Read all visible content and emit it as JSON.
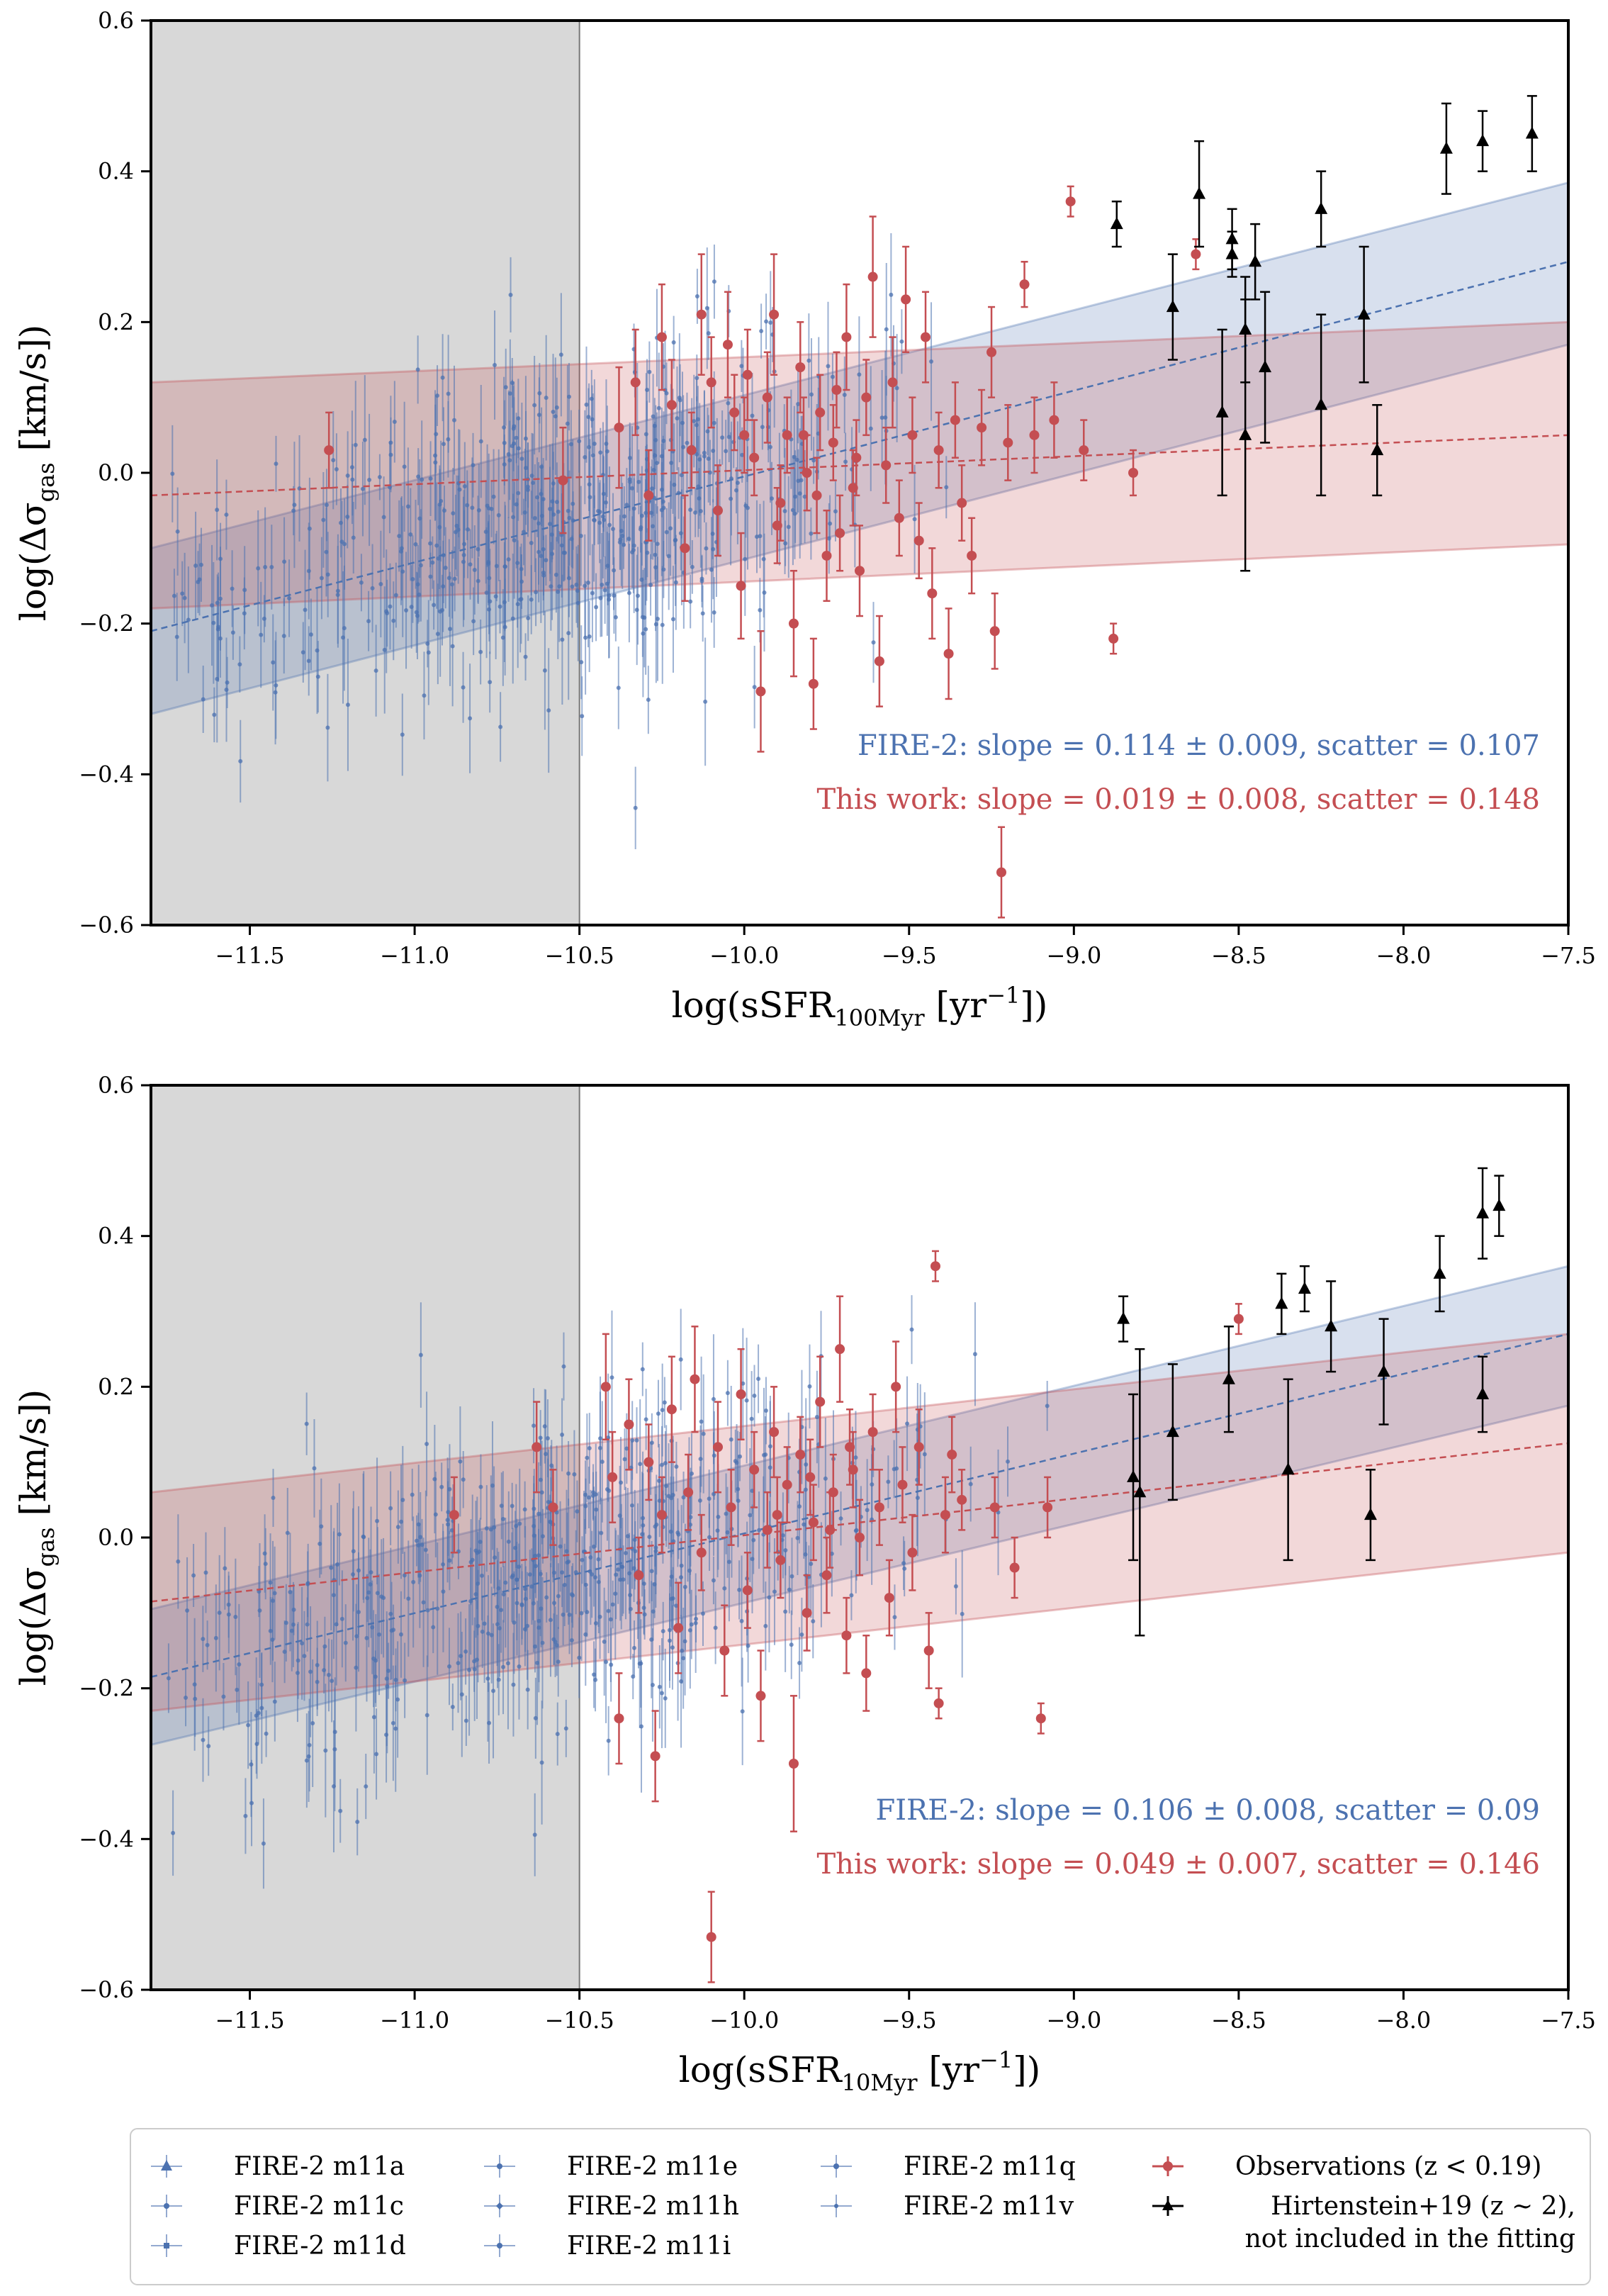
{
  "colors": {
    "fire": "#4c72b0",
    "obs": "#c44e52",
    "hirt": "#000000",
    "masked": "#d8d8d8"
  },
  "chart_data": [
    {
      "type": "scatter",
      "xlabel": "log(sSFR",
      "xlabel_sub": "100Myr",
      "xlabel_unit": " [yr",
      "xlabel_sup": "−1",
      "xlabel_end": "])",
      "ylabel": "log(Δσ",
      "ylabel_sub": "gas",
      "ylabel_end": " [km/s])",
      "xlim": [
        -11.8,
        -7.5
      ],
      "ylim": [
        -0.6,
        0.6
      ],
      "xticks": [
        -11.5,
        -11.0,
        -10.5,
        -10.0,
        -9.5,
        -9.0,
        -8.5,
        -8.0,
        -7.5
      ],
      "xtick_labels": [
        "−11.5",
        "−11.0",
        "−10.5",
        "−10.0",
        "−9.5",
        "−9.0",
        "−8.5",
        "−8.0",
        "−7.5"
      ],
      "yticks": [
        -0.6,
        -0.4,
        -0.2,
        0.0,
        0.2,
        0.4,
        0.6
      ],
      "ytick_labels": [
        "−0.6",
        "−0.4",
        "−0.2",
        "0.0",
        "0.2",
        "0.4",
        "0.6"
      ],
      "masked_region": [
        -11.8,
        -10.5
      ],
      "fits": [
        {
          "series": "FIRE-2",
          "x": [
            -11.8,
            -7.5
          ],
          "y": [
            -0.21,
            0.28
          ],
          "band_lower": [
            -0.32,
            0.17
          ],
          "band_upper": [
            -0.1,
            0.385
          ]
        },
        {
          "series": "This work",
          "x": [
            -11.8,
            -7.5
          ],
          "y": [
            -0.03,
            0.05
          ],
          "band_lower": [
            -0.18,
            -0.095
          ],
          "band_upper": [
            0.12,
            0.2
          ]
        }
      ],
      "annotations": [
        {
          "text": "FIRE-2: slope = 0.114 ± 0.009, scatter = 0.107",
          "color": "fire"
        },
        {
          "text": "This work: slope = 0.019 ± 0.008, scatter = 0.148",
          "color": "obs"
        }
      ],
      "observations": [
        {
          "x": -11.26,
          "y": 0.03,
          "err": 0.05
        },
        {
          "x": -10.55,
          "y": -0.01,
          "err": 0.07
        },
        {
          "x": -10.38,
          "y": 0.06,
          "err": 0.08
        },
        {
          "x": -10.33,
          "y": 0.12,
          "err": 0.07
        },
        {
          "x": -10.29,
          "y": -0.03,
          "err": 0.06
        },
        {
          "x": -10.25,
          "y": 0.18,
          "err": 0.07
        },
        {
          "x": -10.22,
          "y": 0.09,
          "err": 0.06
        },
        {
          "x": -10.18,
          "y": -0.1,
          "err": 0.07
        },
        {
          "x": -10.16,
          "y": 0.03,
          "err": 0.05
        },
        {
          "x": -10.13,
          "y": 0.21,
          "err": 0.08
        },
        {
          "x": -10.1,
          "y": 0.12,
          "err": 0.06
        },
        {
          "x": -10.08,
          "y": -0.05,
          "err": 0.06
        },
        {
          "x": -10.05,
          "y": 0.17,
          "err": 0.07
        },
        {
          "x": -10.03,
          "y": 0.08,
          "err": 0.05
        },
        {
          "x": -10.01,
          "y": -0.15,
          "err": 0.07
        },
        {
          "x": -9.99,
          "y": 0.13,
          "err": 0.06
        },
        {
          "x": -9.97,
          "y": 0.02,
          "err": 0.05
        },
        {
          "x": -9.95,
          "y": -0.29,
          "err": 0.08
        },
        {
          "x": -9.93,
          "y": 0.1,
          "err": 0.06
        },
        {
          "x": -9.91,
          "y": 0.21,
          "err": 0.08
        },
        {
          "x": -9.89,
          "y": -0.04,
          "err": 0.05
        },
        {
          "x": -9.87,
          "y": 0.05,
          "err": 0.05
        },
        {
          "x": -9.85,
          "y": -0.2,
          "err": 0.07
        },
        {
          "x": -9.83,
          "y": 0.14,
          "err": 0.06
        },
        {
          "x": -9.81,
          "y": 0.0,
          "err": 0.05
        },
        {
          "x": -9.79,
          "y": -0.28,
          "err": 0.06
        },
        {
          "x": -9.77,
          "y": 0.08,
          "err": 0.05
        },
        {
          "x": -9.75,
          "y": -0.11,
          "err": 0.06
        },
        {
          "x": -9.73,
          "y": 0.04,
          "err": 0.05
        },
        {
          "x": -9.71,
          "y": -0.08,
          "err": 0.05
        },
        {
          "x": -9.69,
          "y": 0.18,
          "err": 0.07
        },
        {
          "x": -9.67,
          "y": -0.02,
          "err": 0.05
        },
        {
          "x": -9.65,
          "y": -0.13,
          "err": 0.06
        },
        {
          "x": -9.63,
          "y": 0.1,
          "err": 0.05
        },
        {
          "x": -9.61,
          "y": 0.26,
          "err": 0.08
        },
        {
          "x": -9.59,
          "y": -0.25,
          "err": 0.06
        },
        {
          "x": -9.57,
          "y": 0.01,
          "err": 0.05
        },
        {
          "x": -9.55,
          "y": 0.12,
          "err": 0.06
        },
        {
          "x": -9.53,
          "y": -0.06,
          "err": 0.05
        },
        {
          "x": -9.51,
          "y": 0.23,
          "err": 0.07
        },
        {
          "x": -9.49,
          "y": 0.05,
          "err": 0.05
        },
        {
          "x": -9.47,
          "y": -0.09,
          "err": 0.05
        },
        {
          "x": -9.45,
          "y": 0.18,
          "err": 0.06
        },
        {
          "x": -9.43,
          "y": -0.16,
          "err": 0.06
        },
        {
          "x": -9.41,
          "y": 0.03,
          "err": 0.05
        },
        {
          "x": -9.38,
          "y": -0.24,
          "err": 0.06
        },
        {
          "x": -9.36,
          "y": 0.07,
          "err": 0.05
        },
        {
          "x": -9.34,
          "y": -0.04,
          "err": 0.05
        },
        {
          "x": -9.31,
          "y": -0.11,
          "err": 0.05
        },
        {
          "x": -9.28,
          "y": 0.06,
          "err": 0.05
        },
        {
          "x": -9.25,
          "y": 0.16,
          "err": 0.06
        },
        {
          "x": -9.24,
          "y": -0.21,
          "err": 0.05
        },
        {
          "x": -9.22,
          "y": -0.53,
          "err": 0.06
        },
        {
          "x": -9.2,
          "y": 0.04,
          "err": 0.05
        },
        {
          "x": -9.15,
          "y": 0.25,
          "err": 0.03
        },
        {
          "x": -9.12,
          "y": 0.05,
          "err": 0.05
        },
        {
          "x": -9.06,
          "y": 0.07,
          "err": 0.05
        },
        {
          "x": -9.01,
          "y": 0.36,
          "err": 0.02
        },
        {
          "x": -8.97,
          "y": 0.03,
          "err": 0.04
        },
        {
          "x": -8.88,
          "y": -0.22,
          "err": 0.02
        },
        {
          "x": -8.82,
          "y": 0.0,
          "err": 0.03
        },
        {
          "x": -8.63,
          "y": 0.29,
          "err": 0.02
        },
        {
          "x": -9.82,
          "y": 0.05,
          "err": 0.05
        },
        {
          "x": -9.78,
          "y": -0.03,
          "err": 0.05
        },
        {
          "x": -9.72,
          "y": 0.11,
          "err": 0.05
        },
        {
          "x": -9.66,
          "y": 0.02,
          "err": 0.05
        },
        {
          "x": -9.9,
          "y": -0.07,
          "err": 0.05
        },
        {
          "x": -10.0,
          "y": 0.05,
          "err": 0.05
        }
      ],
      "hirtenstein": [
        {
          "x": -8.87,
          "y": 0.33,
          "err": 0.03
        },
        {
          "x": -8.7,
          "y": 0.22,
          "err": 0.07
        },
        {
          "x": -8.62,
          "y": 0.37,
          "err": 0.07
        },
        {
          "x": -8.55,
          "y": 0.08,
          "err": 0.11
        },
        {
          "x": -8.52,
          "y": 0.29,
          "err": 0.03
        },
        {
          "x": -8.52,
          "y": 0.31,
          "err": 0.04
        },
        {
          "x": -8.48,
          "y": 0.19,
          "err": 0.07
        },
        {
          "x": -8.48,
          "y": 0.05,
          "err": 0.18
        },
        {
          "x": -8.45,
          "y": 0.28,
          "err": 0.05
        },
        {
          "x": -8.42,
          "y": 0.14,
          "err": 0.1
        },
        {
          "x": -8.25,
          "y": 0.35,
          "err": 0.05
        },
        {
          "x": -8.25,
          "y": 0.09,
          "err": 0.12
        },
        {
          "x": -8.12,
          "y": 0.21,
          "err": 0.09
        },
        {
          "x": -8.08,
          "y": 0.03,
          "err": 0.06
        },
        {
          "x": -7.87,
          "y": 0.43,
          "err": 0.06
        },
        {
          "x": -7.76,
          "y": 0.44,
          "err": 0.04
        },
        {
          "x": -7.61,
          "y": 0.45,
          "err": 0.05
        }
      ]
    },
    {
      "type": "scatter",
      "xlabel": "log(sSFR",
      "xlabel_sub": "10Myr",
      "xlabel_unit": " [yr",
      "xlabel_sup": "−1",
      "xlabel_end": "])",
      "ylabel": "log(Δσ",
      "ylabel_sub": "gas",
      "ylabel_end": " [km/s])",
      "xlim": [
        -11.8,
        -7.5
      ],
      "ylim": [
        -0.6,
        0.6
      ],
      "xticks": [
        -11.5,
        -11.0,
        -10.5,
        -10.0,
        -9.5,
        -9.0,
        -8.5,
        -8.0,
        -7.5
      ],
      "xtick_labels": [
        "−11.5",
        "−11.0",
        "−10.5",
        "−10.0",
        "−9.5",
        "−9.0",
        "−8.5",
        "−8.0",
        "−7.5"
      ],
      "yticks": [
        -0.6,
        -0.4,
        -0.2,
        0.0,
        0.2,
        0.4,
        0.6
      ],
      "ytick_labels": [
        "−0.6",
        "−0.4",
        "−0.2",
        "0.0",
        "0.2",
        "0.4",
        "0.6"
      ],
      "masked_region": [
        -11.8,
        -10.5
      ],
      "fits": [
        {
          "series": "FIRE-2",
          "x": [
            -11.8,
            -7.5
          ],
          "y": [
            -0.185,
            0.27
          ],
          "band_lower": [
            -0.275,
            0.175
          ],
          "band_upper": [
            -0.095,
            0.36
          ]
        },
        {
          "series": "This work",
          "x": [
            -11.8,
            -7.5
          ],
          "y": [
            -0.085,
            0.125
          ],
          "band_lower": [
            -0.23,
            -0.02
          ],
          "band_upper": [
            0.06,
            0.27
          ]
        }
      ],
      "annotations": [
        {
          "text": "FIRE-2: slope = 0.106 ± 0.008, scatter = 0.09",
          "color": "fire"
        },
        {
          "text": "This work: slope = 0.049 ± 0.007, scatter = 0.146",
          "color": "obs"
        }
      ],
      "observations": [
        {
          "x": -10.88,
          "y": 0.03,
          "err": 0.05
        },
        {
          "x": -10.63,
          "y": 0.12,
          "err": 0.06
        },
        {
          "x": -10.58,
          "y": 0.04,
          "err": 0.05
        },
        {
          "x": -10.42,
          "y": 0.2,
          "err": 0.07
        },
        {
          "x": -10.4,
          "y": 0.08,
          "err": 0.06
        },
        {
          "x": -10.38,
          "y": -0.24,
          "err": 0.06
        },
        {
          "x": -10.35,
          "y": 0.15,
          "err": 0.06
        },
        {
          "x": -10.32,
          "y": -0.05,
          "err": 0.05
        },
        {
          "x": -10.29,
          "y": 0.1,
          "err": 0.05
        },
        {
          "x": -10.27,
          "y": -0.29,
          "err": 0.06
        },
        {
          "x": -10.25,
          "y": 0.03,
          "err": 0.05
        },
        {
          "x": -10.22,
          "y": 0.17,
          "err": 0.07
        },
        {
          "x": -10.2,
          "y": -0.12,
          "err": 0.06
        },
        {
          "x": -10.17,
          "y": 0.06,
          "err": 0.05
        },
        {
          "x": -10.15,
          "y": 0.21,
          "err": 0.07
        },
        {
          "x": -10.13,
          "y": -0.02,
          "err": 0.05
        },
        {
          "x": -10.1,
          "y": -0.53,
          "err": 0.06
        },
        {
          "x": -10.08,
          "y": 0.12,
          "err": 0.06
        },
        {
          "x": -10.06,
          "y": -0.15,
          "err": 0.06
        },
        {
          "x": -10.04,
          "y": 0.04,
          "err": 0.05
        },
        {
          "x": -10.01,
          "y": 0.19,
          "err": 0.06
        },
        {
          "x": -9.99,
          "y": -0.07,
          "err": 0.05
        },
        {
          "x": -9.97,
          "y": 0.09,
          "err": 0.05
        },
        {
          "x": -9.95,
          "y": -0.21,
          "err": 0.06
        },
        {
          "x": -9.93,
          "y": 0.01,
          "err": 0.05
        },
        {
          "x": -9.91,
          "y": 0.14,
          "err": 0.06
        },
        {
          "x": -9.89,
          "y": -0.03,
          "err": 0.05
        },
        {
          "x": -9.87,
          "y": 0.07,
          "err": 0.05
        },
        {
          "x": -9.85,
          "y": -0.3,
          "err": 0.09
        },
        {
          "x": -9.83,
          "y": 0.11,
          "err": 0.05
        },
        {
          "x": -9.81,
          "y": -0.1,
          "err": 0.05
        },
        {
          "x": -9.79,
          "y": 0.02,
          "err": 0.05
        },
        {
          "x": -9.77,
          "y": 0.18,
          "err": 0.06
        },
        {
          "x": -9.75,
          "y": -0.05,
          "err": 0.05
        },
        {
          "x": -9.73,
          "y": 0.06,
          "err": 0.05
        },
        {
          "x": -9.71,
          "y": 0.25,
          "err": 0.07
        },
        {
          "x": -9.69,
          "y": -0.13,
          "err": 0.05
        },
        {
          "x": -9.67,
          "y": 0.09,
          "err": 0.05
        },
        {
          "x": -9.65,
          "y": 0.0,
          "err": 0.05
        },
        {
          "x": -9.63,
          "y": -0.18,
          "err": 0.05
        },
        {
          "x": -9.61,
          "y": 0.14,
          "err": 0.05
        },
        {
          "x": -9.59,
          "y": 0.04,
          "err": 0.05
        },
        {
          "x": -9.56,
          "y": -0.08,
          "err": 0.05
        },
        {
          "x": -9.54,
          "y": 0.2,
          "err": 0.06
        },
        {
          "x": -9.52,
          "y": 0.07,
          "err": 0.05
        },
        {
          "x": -9.49,
          "y": -0.02,
          "err": 0.05
        },
        {
          "x": -9.47,
          "y": 0.12,
          "err": 0.05
        },
        {
          "x": -9.44,
          "y": -0.15,
          "err": 0.05
        },
        {
          "x": -9.42,
          "y": 0.36,
          "err": 0.02
        },
        {
          "x": -9.41,
          "y": -0.22,
          "err": 0.02
        },
        {
          "x": -9.39,
          "y": 0.03,
          "err": 0.05
        },
        {
          "x": -9.37,
          "y": 0.11,
          "err": 0.05
        },
        {
          "x": -9.34,
          "y": 0.05,
          "err": 0.04
        },
        {
          "x": -9.24,
          "y": 0.04,
          "err": 0.04
        },
        {
          "x": -9.18,
          "y": -0.04,
          "err": 0.04
        },
        {
          "x": -9.1,
          "y": -0.24,
          "err": 0.02
        },
        {
          "x": -9.08,
          "y": 0.04,
          "err": 0.04
        },
        {
          "x": -8.5,
          "y": 0.29,
          "err": 0.02
        },
        {
          "x": -9.8,
          "y": 0.08,
          "err": 0.05
        },
        {
          "x": -9.74,
          "y": 0.01,
          "err": 0.05
        },
        {
          "x": -9.68,
          "y": 0.12,
          "err": 0.05
        },
        {
          "x": -9.9,
          "y": 0.03,
          "err": 0.05
        }
      ],
      "hirtenstein": [
        {
          "x": -8.85,
          "y": 0.29,
          "err": 0.03
        },
        {
          "x": -8.82,
          "y": 0.08,
          "err": 0.11
        },
        {
          "x": -8.8,
          "y": 0.06,
          "err": 0.19
        },
        {
          "x": -8.7,
          "y": 0.14,
          "err": 0.09
        },
        {
          "x": -8.53,
          "y": 0.21,
          "err": 0.07
        },
        {
          "x": -8.37,
          "y": 0.31,
          "err": 0.04
        },
        {
          "x": -8.35,
          "y": 0.09,
          "err": 0.12
        },
        {
          "x": -8.3,
          "y": 0.33,
          "err": 0.03
        },
        {
          "x": -8.22,
          "y": 0.28,
          "err": 0.06
        },
        {
          "x": -8.1,
          "y": 0.03,
          "err": 0.06
        },
        {
          "x": -8.06,
          "y": 0.22,
          "err": 0.07
        },
        {
          "x": -7.89,
          "y": 0.35,
          "err": 0.05
        },
        {
          "x": -7.76,
          "y": 0.43,
          "err": 0.06
        },
        {
          "x": -7.76,
          "y": 0.19,
          "err": 0.05
        },
        {
          "x": -7.71,
          "y": 0.44,
          "err": 0.04
        }
      ]
    }
  ],
  "legend": {
    "items": [
      {
        "label": "FIRE-2 m11a",
        "kind": "fire",
        "marker": "triangle"
      },
      {
        "label": "FIRE-2 m11c",
        "kind": "fire",
        "marker": "circle"
      },
      {
        "label": "FIRE-2 m11d",
        "kind": "fire",
        "marker": "square"
      },
      {
        "label": "FIRE-2 m11e",
        "kind": "fire",
        "marker": "tri-down"
      },
      {
        "label": "FIRE-2 m11h",
        "kind": "fire",
        "marker": "diamond"
      },
      {
        "label": "FIRE-2 m11i",
        "kind": "fire",
        "marker": "star"
      },
      {
        "label": "FIRE-2 m11q",
        "kind": "fire",
        "marker": "circle"
      },
      {
        "label": "FIRE-2 m11v",
        "kind": "fire",
        "marker": "dot"
      },
      {
        "label": "Observations (z < 0.19)",
        "kind": "obs",
        "marker": "circle"
      },
      {
        "label": "Hirtenstein+19 (z ∼ 2),",
        "label2": "not included in the fitting",
        "kind": "hirt",
        "marker": "triangle"
      }
    ]
  }
}
